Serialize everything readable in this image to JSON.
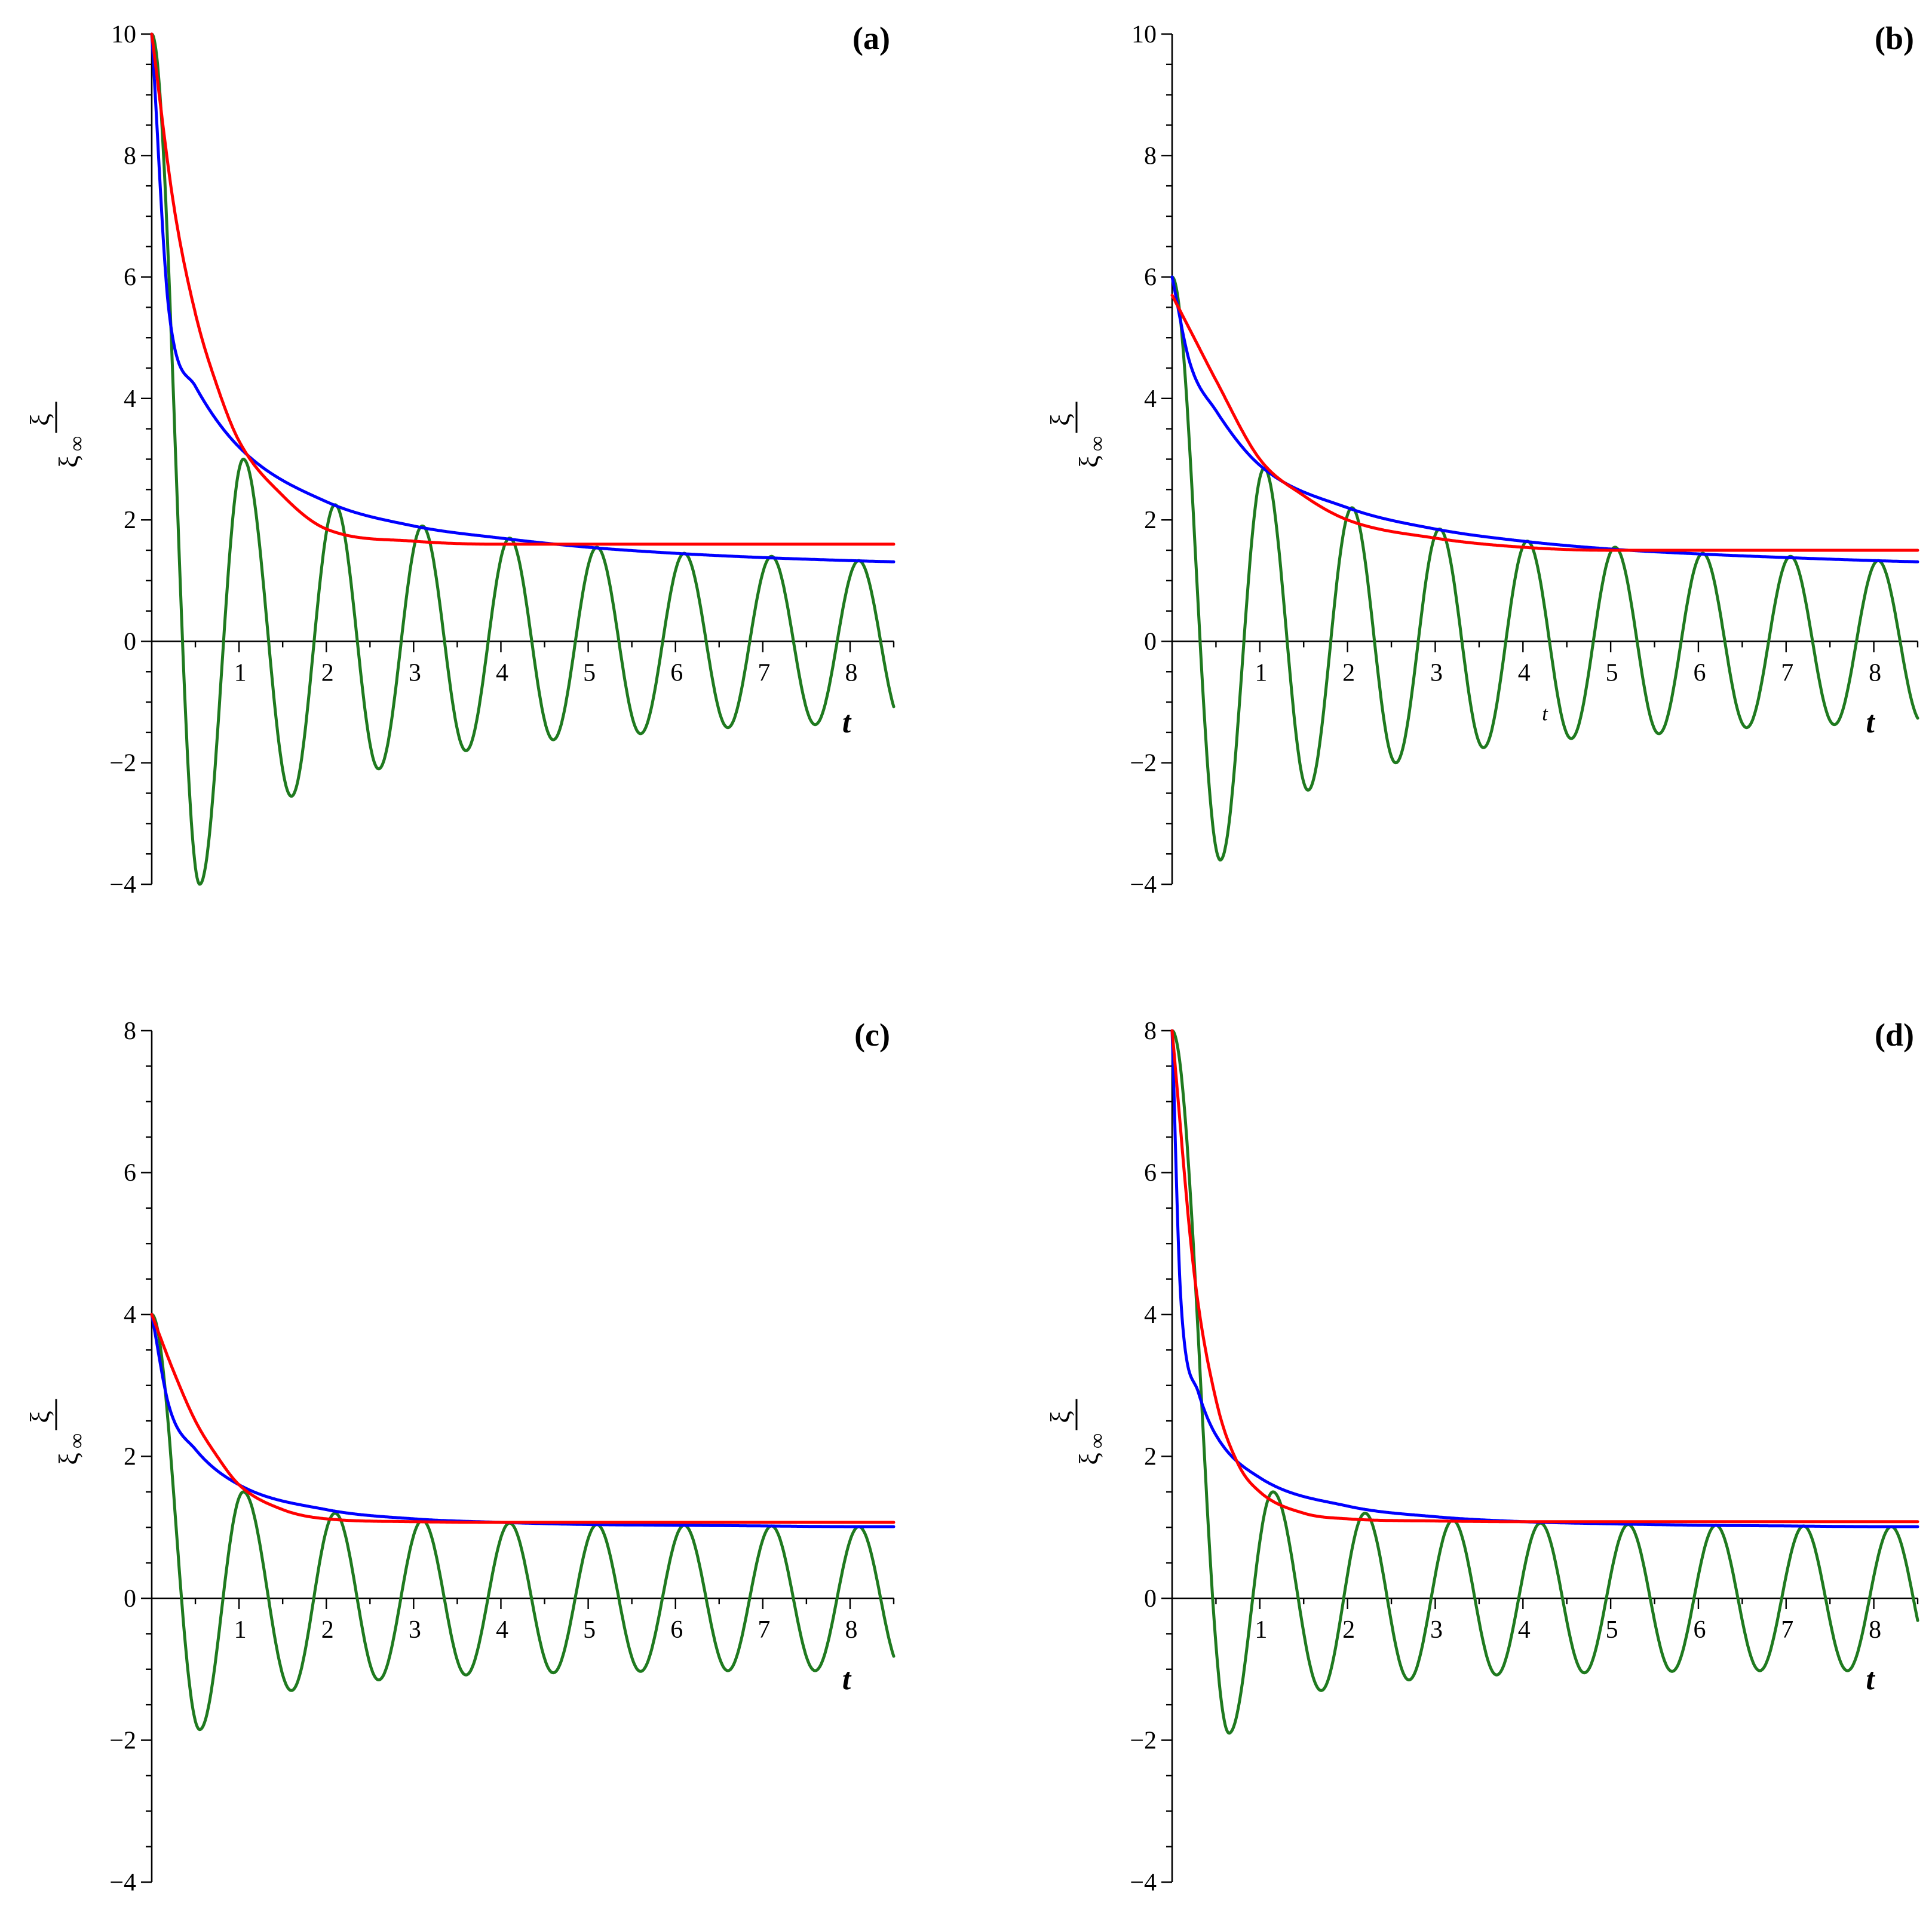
{
  "figure": {
    "colors": {
      "green": "#1f7a1f",
      "blue": "#0000ff",
      "red": "#ff0000"
    }
  },
  "chart_data": [
    {
      "type": "line",
      "panel_label": "(a)",
      "ylabel_num": "ξ",
      "ylabel_den": "ξ",
      "ylabel_den_sub": "∞",
      "xlabel": "t",
      "xlim": [
        0,
        8.5
      ],
      "ylim": [
        -4,
        10
      ],
      "x_ticks": [
        "1",
        "2",
        "3",
        "4",
        "5",
        "6",
        "7",
        "8"
      ],
      "y_ticks": [
        "10",
        "8",
        "6",
        "4",
        "2",
        "0",
        "−2",
        "−4"
      ],
      "series": [
        {
          "color": "green",
          "model": "damped_cosine",
          "start": 10,
          "offset": 0,
          "amplitude_decay": "power",
          "x": [
            0,
            0.55,
            1.05,
            1.6,
            2.1,
            2.6,
            3.1,
            3.6,
            4.1,
            4.6,
            5.1,
            5.6,
            6.1,
            6.6,
            7.1,
            7.6,
            8.1
          ],
          "y": [
            10,
            -4.0,
            3.0,
            -2.55,
            2.25,
            -2.1,
            1.9,
            -1.8,
            1.7,
            -1.62,
            1.55,
            -1.52,
            1.45,
            -1.42,
            1.4,
            -1.37,
            1.33
          ]
        },
        {
          "color": "blue",
          "x": [
            0,
            0.2,
            0.5,
            1.0,
            2.0,
            3.0,
            4.0,
            5.0,
            6.0,
            7.0,
            8.0,
            8.5
          ],
          "y": [
            10,
            5.4,
            4.2,
            3.2,
            2.3,
            1.9,
            1.7,
            1.55,
            1.45,
            1.38,
            1.33,
            1.31
          ]
        },
        {
          "color": "red",
          "x": [
            0,
            0.25,
            0.5,
            0.75,
            1.0,
            1.5,
            2.0,
            3.0,
            4.0,
            5.0,
            6.0,
            7.0,
            8.0,
            8.5
          ],
          "y": [
            10,
            7.2,
            5.4,
            4.2,
            3.3,
            2.4,
            1.85,
            1.65,
            1.6,
            1.6,
            1.6,
            1.6,
            1.6,
            1.6
          ]
        }
      ]
    },
    {
      "type": "line",
      "panel_label": "(b)",
      "ylabel_num": "ξ",
      "ylabel_den": "ξ",
      "ylabel_den_sub": "∞",
      "xlabel": "t",
      "stray_label": "t",
      "xlim": [
        0,
        8.5
      ],
      "ylim": [
        -4,
        10
      ],
      "x_ticks": [
        "1",
        "2",
        "3",
        "4",
        "5",
        "6",
        "7",
        "8"
      ],
      "y_ticks": [
        "10",
        "8",
        "6",
        "4",
        "2",
        "0",
        "−2",
        "−4"
      ],
      "series": [
        {
          "color": "green",
          "x": [
            0,
            0.55,
            1.05,
            1.55,
            2.05,
            2.55,
            3.05,
            3.55,
            4.05,
            4.55,
            5.05,
            5.55,
            6.05,
            6.55,
            7.05,
            7.55,
            8.05
          ],
          "y": [
            6.0,
            -3.6,
            2.85,
            -2.45,
            2.2,
            -2.0,
            1.85,
            -1.75,
            1.65,
            -1.6,
            1.55,
            -1.52,
            1.45,
            -1.42,
            1.4,
            -1.37,
            1.33
          ]
        },
        {
          "color": "blue",
          "x": [
            0,
            0.2,
            0.5,
            1.0,
            2.0,
            3.0,
            4.0,
            5.0,
            6.0,
            7.0,
            8.0,
            8.5
          ],
          "y": [
            6.0,
            4.6,
            3.8,
            2.9,
            2.2,
            1.85,
            1.65,
            1.52,
            1.44,
            1.38,
            1.33,
            1.31
          ]
        },
        {
          "color": "red",
          "x": [
            0,
            0.25,
            0.5,
            1.0,
            1.5,
            2.0,
            3.0,
            4.0,
            5.0,
            6.0,
            7.0,
            8.0,
            8.5
          ],
          "y": [
            5.7,
            5.0,
            4.3,
            3.0,
            2.4,
            2.0,
            1.7,
            1.55,
            1.5,
            1.5,
            1.5,
            1.5,
            1.5
          ]
        }
      ]
    },
    {
      "type": "line",
      "panel_label": "(c)",
      "ylabel_num": "ξ",
      "ylabel_den": "ξ",
      "ylabel_den_sub": "∞",
      "xlabel": "t",
      "xlim": [
        0,
        8.5
      ],
      "ylim": [
        -4,
        8
      ],
      "x_ticks": [
        "1",
        "2",
        "3",
        "4",
        "5",
        "6",
        "7",
        "8"
      ],
      "y_ticks": [
        "8",
        "6",
        "4",
        "2",
        "0",
        "−2",
        "−4"
      ],
      "series": [
        {
          "color": "green",
          "x": [
            0,
            0.55,
            1.05,
            1.6,
            2.1,
            2.6,
            3.1,
            3.6,
            4.1,
            4.6,
            5.1,
            5.6,
            6.1,
            6.6,
            7.1,
            7.6,
            8.1
          ],
          "y": [
            4.0,
            -1.85,
            1.5,
            -1.3,
            1.2,
            -1.15,
            1.1,
            -1.08,
            1.06,
            -1.05,
            1.04,
            -1.03,
            1.03,
            -1.02,
            1.02,
            -1.02,
            1.01
          ]
        },
        {
          "color": "blue",
          "x": [
            0,
            0.2,
            0.5,
            1.0,
            2.0,
            3.0,
            4.0,
            5.0,
            6.0,
            7.0,
            8.0,
            8.5
          ],
          "y": [
            4.0,
            2.7,
            2.1,
            1.6,
            1.25,
            1.12,
            1.07,
            1.04,
            1.03,
            1.02,
            1.01,
            1.01
          ]
        },
        {
          "color": "red",
          "x": [
            0,
            0.25,
            0.5,
            0.75,
            1.0,
            1.5,
            2.0,
            3.0,
            4.0,
            5.0,
            6.0,
            7.0,
            8.0,
            8.5
          ],
          "y": [
            4.0,
            3.2,
            2.5,
            2.0,
            1.6,
            1.25,
            1.12,
            1.08,
            1.07,
            1.07,
            1.07,
            1.07,
            1.07,
            1.07
          ]
        }
      ]
    },
    {
      "type": "line",
      "panel_label": "(d)",
      "ylabel_num": "ξ",
      "ylabel_den": "ξ",
      "ylabel_den_sub": "∞",
      "xlabel": "t",
      "xlim": [
        0,
        8.5
      ],
      "ylim": [
        -4,
        8
      ],
      "x_ticks": [
        "1",
        "2",
        "3",
        "4",
        "5",
        "6",
        "7",
        "8"
      ],
      "y_ticks": [
        "8",
        "6",
        "4",
        "2",
        "0",
        "−2",
        "−4"
      ],
      "series": [
        {
          "color": "green",
          "x": [
            0,
            0.65,
            1.15,
            1.7,
            2.2,
            2.7,
            3.2,
            3.7,
            4.2,
            4.7,
            5.2,
            5.7,
            6.2,
            6.7,
            7.2,
            7.7,
            8.2
          ],
          "y": [
            8.0,
            -1.9,
            1.5,
            -1.3,
            1.2,
            -1.15,
            1.1,
            -1.08,
            1.06,
            -1.05,
            1.04,
            -1.03,
            1.03,
            -1.02,
            1.02,
            -1.02,
            1.01
          ]
        },
        {
          "color": "blue",
          "x": [
            0,
            0.1,
            0.3,
            0.5,
            1.0,
            2.0,
            3.0,
            4.0,
            5.0,
            6.0,
            7.0,
            8.0,
            8.5
          ],
          "y": [
            8.0,
            4.2,
            2.9,
            2.3,
            1.7,
            1.3,
            1.15,
            1.08,
            1.05,
            1.03,
            1.02,
            1.01,
            1.01
          ]
        },
        {
          "color": "red",
          "x": [
            0,
            0.25,
            0.5,
            0.75,
            1.0,
            1.5,
            2.0,
            3.0,
            4.0,
            5.0,
            6.0,
            7.0,
            8.0,
            8.5
          ],
          "y": [
            8.0,
            4.6,
            2.8,
            1.9,
            1.5,
            1.2,
            1.12,
            1.09,
            1.08,
            1.08,
            1.08,
            1.08,
            1.08,
            1.08
          ]
        }
      ]
    }
  ]
}
